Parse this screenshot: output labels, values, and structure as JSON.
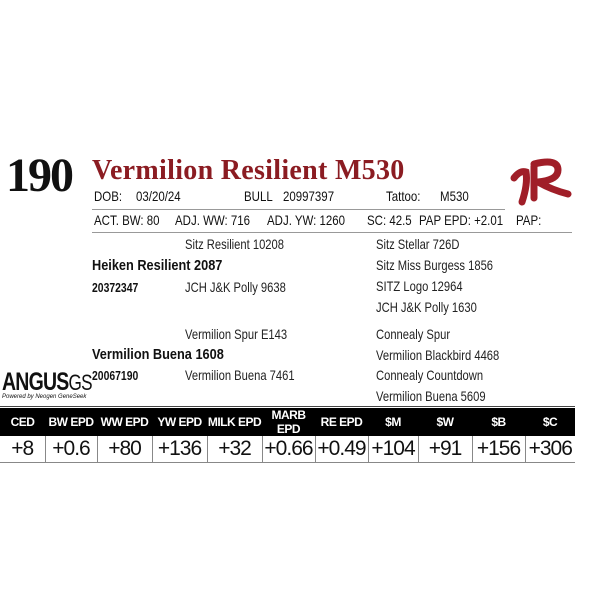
{
  "lot_number": "190",
  "animal_name": "Vermilion Resilient M530",
  "dob_label": "DOB:",
  "dob": "03/20/24",
  "sex": "BULL",
  "registration": "20997397",
  "tattoo_label": "Tattoo:",
  "tattoo": "M530",
  "brand_mark": "VR",
  "performance": {
    "act_bw": "ACT. BW: 80",
    "adj_ww": "ADJ. WW: 716",
    "adj_yw": "ADJ. YW: 1260",
    "sc": "SC: 42.5",
    "pap_epd": "PAP EPD: +2.01",
    "pap": "PAP:"
  },
  "pedigree": {
    "sire": {
      "name": "Heiken Resilient 2087",
      "reg": "20372347",
      "sire": "Sitz Resilient 10208",
      "dam": "JCH J&K Polly 9638",
      "gp": [
        "Sitz Stellar 726D",
        "Sitz Miss Burgess 1856",
        "SITZ Logo 12964",
        "JCH J&K Polly 1630"
      ]
    },
    "dam": {
      "name": "Vermilion Buena 1608",
      "reg": "20067190",
      "sire": "Vermilion Spur E143",
      "dam": "Vermilion Buena 7461",
      "gp": [
        "Connealy Spur",
        "Vermilion Blackbird 4468",
        "Connealy Countdown",
        "Vermilion Buena 5609"
      ]
    }
  },
  "logo": {
    "main": "ANGUS",
    "suffix": "GS",
    "tagline": "Powered by Neogen GeneSeek"
  },
  "epds": {
    "headers": [
      "CED",
      "BW EPD",
      "WW EPD",
      "YW EPD",
      "MILK EPD",
      "MARB EPD",
      "RE EPD",
      "$M",
      "$W",
      "$B",
      "$C"
    ],
    "values": [
      "+8",
      "+0.6",
      "+80",
      "+136",
      "+32",
      "+0.66",
      "+0.49",
      "+104",
      "+91",
      "+156",
      "+306"
    ]
  },
  "colors": {
    "title": "#8b1c22",
    "brand": "#a01e28"
  }
}
